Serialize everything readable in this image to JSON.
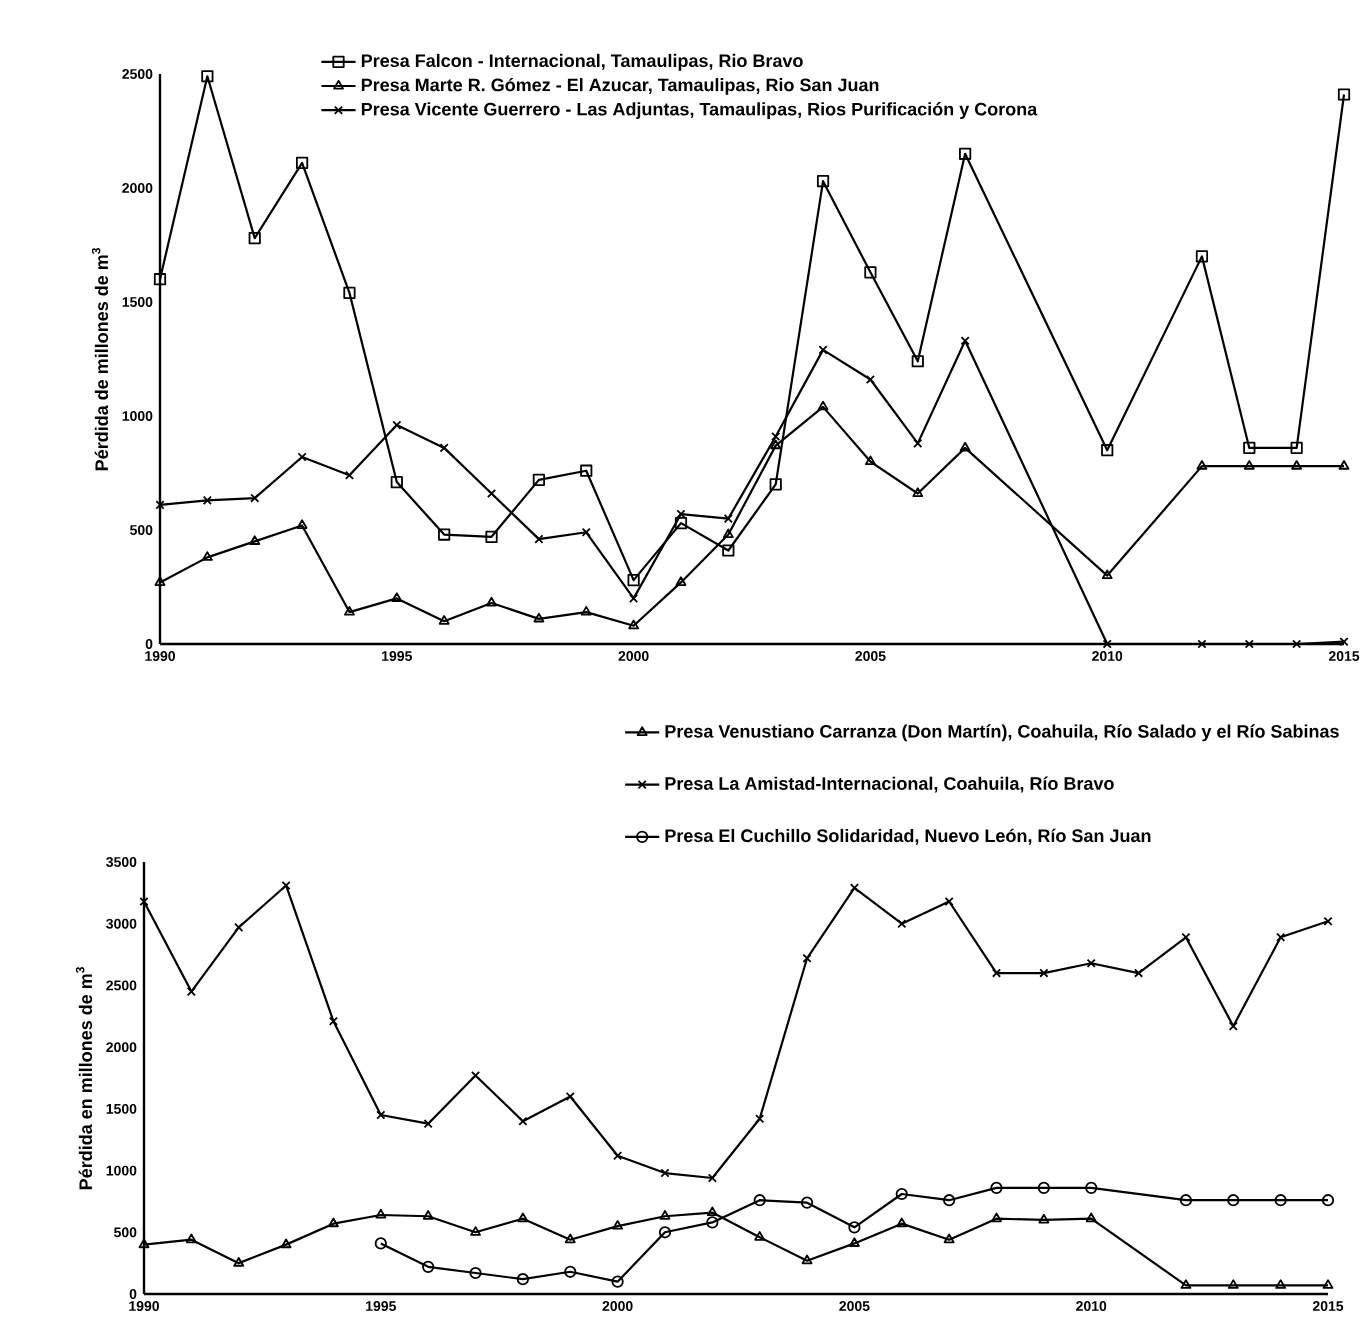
{
  "chart_data": [
    {
      "type": "line",
      "ylabel": "Pérdida de millones de m$^{3}$",
      "xlim": [
        1990,
        2015
      ],
      "ylim": [
        0,
        2500
      ],
      "xticks": [
        1990,
        1995,
        2000,
        2005,
        2010,
        2015
      ],
      "yticks": [
        0,
        500,
        1000,
        1500,
        2000,
        2500
      ],
      "grid": false,
      "legend": "top",
      "line_style": "solid",
      "series": [
        {
          "name": "Presa Falcon - Internacional, Tamaulipas, Rio Bravo",
          "color": "#000000",
          "marker": "square",
          "x": [
            1990,
            1991,
            1992,
            1993,
            1994,
            1995,
            1996,
            1997,
            1998,
            1999,
            2000,
            2001,
            2002,
            2003,
            2004,
            2005,
            2006,
            2007,
            2010,
            2012,
            2013,
            2014,
            2015
          ],
          "values": [
            1600,
            2490,
            1780,
            2110,
            1540,
            710,
            480,
            470,
            720,
            760,
            280,
            530,
            410,
            700,
            2030,
            1630,
            1240,
            2150,
            850,
            1700,
            860,
            860,
            2410
          ]
        },
        {
          "name": "Presa Marte R. Gómez - El Azucar, Tamaulipas, Rio San Juan",
          "color": "#000000",
          "marker": "triangle",
          "x": [
            1990,
            1991,
            1992,
            1993,
            1994,
            1995,
            1996,
            1997,
            1998,
            1999,
            2000,
            2001,
            2002,
            2003,
            2004,
            2005,
            2006,
            2007,
            2010,
            2012,
            2013,
            2014,
            2015
          ],
          "values": [
            270,
            380,
            450,
            520,
            140,
            200,
            100,
            180,
            110,
            140,
            80,
            270,
            480,
            870,
            1040,
            800,
            660,
            860,
            300,
            780,
            780,
            780,
            780
          ]
        },
        {
          "name": "Presa Vicente Guerrero - Las Adjuntas, Tamaulipas, Rios Purificación y Corona",
          "color": "#000000",
          "marker": "cross",
          "x": [
            1990,
            1991,
            1992,
            1993,
            1994,
            1995,
            1996,
            1997,
            1998,
            1999,
            2000,
            2001,
            2002,
            2003,
            2004,
            2005,
            2006,
            2007,
            2010,
            2012,
            2013,
            2014,
            2015
          ],
          "values": [
            610,
            630,
            640,
            820,
            740,
            960,
            860,
            660,
            460,
            490,
            200,
            570,
            550,
            910,
            1290,
            1160,
            880,
            1330,
            0,
            0,
            0,
            0,
            10
          ]
        }
      ]
    },
    {
      "type": "line",
      "ylabel": "Pérdida en millones de m$^{3}$",
      "xlim": [
        1990,
        2015
      ],
      "ylim": [
        0,
        3500
      ],
      "xticks": [
        1990,
        1995,
        2000,
        2005,
        2010,
        2015
      ],
      "yticks": [
        0,
        500,
        1000,
        1500,
        2000,
        2500,
        3000,
        3500
      ],
      "grid": false,
      "legend": "top",
      "line_style": "solid",
      "series": [
        {
          "name": "Presa Venustiano Carranza (Don Martín), Coahuila, Río Salado y el Río Sabinas",
          "color": "#000000",
          "marker": "triangle",
          "x": [
            1990,
            1991,
            1992,
            1993,
            1994,
            1995,
            1996,
            1997,
            1998,
            1999,
            2000,
            2001,
            2002,
            2003,
            2004,
            2005,
            2006,
            2007,
            2008,
            2009,
            2010,
            2012,
            2013,
            2014,
            2015
          ],
          "values": [
            400,
            440,
            250,
            400,
            570,
            640,
            630,
            500,
            610,
            440,
            550,
            630,
            660,
            460,
            270,
            410,
            570,
            440,
            610,
            600,
            610,
            70,
            70,
            70,
            70
          ]
        },
        {
          "name": "Presa La Amistad-Internacional, Coahuila, Río Bravo",
          "color": "#000000",
          "marker": "cross",
          "x": [
            1990,
            1991,
            1992,
            1993,
            1994,
            1995,
            1996,
            1997,
            1998,
            1999,
            2000,
            2001,
            2002,
            2003,
            2004,
            2005,
            2006,
            2007,
            2008,
            2009,
            2010,
            2011,
            2012,
            2013,
            2014,
            2015
          ],
          "values": [
            3180,
            2450,
            2970,
            3310,
            2210,
            1450,
            1380,
            1770,
            1400,
            1600,
            1120,
            980,
            940,
            1420,
            2720,
            3290,
            3000,
            3180,
            2600,
            2600,
            2680,
            2600,
            2890,
            2170,
            2890,
            3020
          ]
        },
        {
          "name": "Presa El Cuchillo Solidaridad, Nuevo León, Río San Juan",
          "color": "#000000",
          "marker": "circle",
          "x": [
            1995,
            1996,
            1997,
            1998,
            1999,
            2000,
            2001,
            2002,
            2003,
            2004,
            2005,
            2006,
            2007,
            2008,
            2009,
            2010,
            2012,
            2013,
            2014,
            2015
          ],
          "values": [
            410,
            220,
            170,
            120,
            180,
            100,
            500,
            580,
            760,
            740,
            540,
            810,
            760,
            860,
            860,
            860,
            760,
            760,
            760,
            760
          ]
        }
      ]
    }
  ]
}
